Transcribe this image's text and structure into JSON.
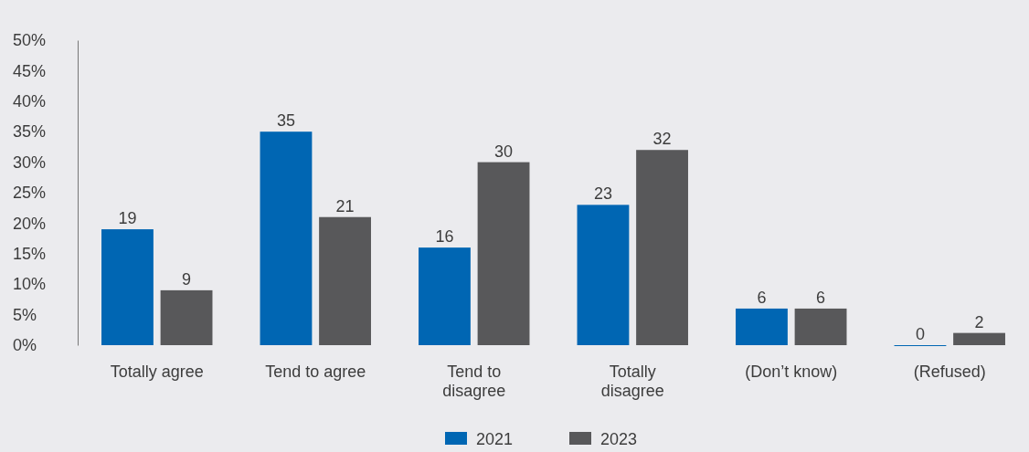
{
  "chart_data": {
    "type": "bar",
    "categories": [
      "Totally agree",
      "Tend to agree",
      "Tend to disagree",
      "Totally disagree",
      "(Don’t know)",
      "(Refused)"
    ],
    "series": [
      {
        "name": "2021",
        "color": "#0066b3",
        "values": [
          19,
          35,
          16,
          23,
          6,
          0
        ]
      },
      {
        "name": "2023",
        "color": "#58585a",
        "values": [
          9,
          21,
          30,
          32,
          6,
          2
        ]
      }
    ],
    "ylim": [
      0,
      50
    ],
    "yticks": [
      {
        "value": 0,
        "label": "0%"
      },
      {
        "value": 5,
        "label": "5%"
      },
      {
        "value": 10,
        "label": "10%"
      },
      {
        "value": 15,
        "label": "15%"
      },
      {
        "value": 20,
        "label": "20%"
      },
      {
        "value": 25,
        "label": "25%"
      },
      {
        "value": 30,
        "label": "30%"
      },
      {
        "value": 35,
        "label": "35%"
      },
      {
        "value": 40,
        "label": "40%"
      },
      {
        "value": 45,
        "label": "45%"
      },
      {
        "value": 50,
        "label": "50%"
      }
    ],
    "data_labels": true,
    "legend": "bottom"
  }
}
